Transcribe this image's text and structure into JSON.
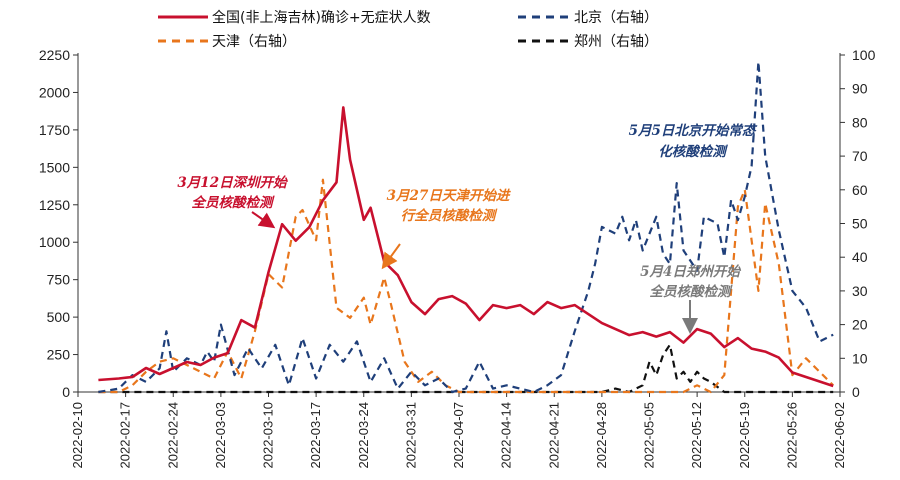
{
  "colors": {
    "national": "#c8102e",
    "beijing": "#1f3f7a",
    "tianjin": "#e8761c",
    "zhengzhou": "#111111",
    "annot_beijing": "#1f3f7a",
    "annot_zhengzhou": "#7a7a7a"
  },
  "chart_data": {
    "type": "line",
    "legend_position": "top",
    "grid": false,
    "x_ticks": [
      "2022-02-10",
      "2022-02-17",
      "2022-02-24",
      "2022-03-03",
      "2022-03-10",
      "2022-03-17",
      "2022-03-24",
      "2022-03-31",
      "2022-04-07",
      "2022-04-14",
      "2022-04-21",
      "2022-04-28",
      "2022-05-05",
      "2022-05-12",
      "2022-05-19",
      "2022-05-26",
      "2022-06-02"
    ],
    "y_left": {
      "range": [
        0,
        2250
      ],
      "ticks": [
        "0",
        "250",
        "500",
        "750",
        "1000",
        "1250",
        "1500",
        "1750",
        "2000",
        "2250"
      ]
    },
    "y_right": {
      "range": [
        0,
        100
      ],
      "ticks": [
        "0",
        "10",
        "20",
        "30",
        "40",
        "50",
        "60",
        "70",
        "80",
        "90",
        "100"
      ]
    },
    "series": [
      {
        "name": "全国(非上海吉林)确诊+无症状人数",
        "axis": "left",
        "style": "solid",
        "points": [
          [
            "2022-02-13",
            80
          ],
          [
            "2022-02-16",
            90
          ],
          [
            "2022-02-18",
            100
          ],
          [
            "2022-02-20",
            160
          ],
          [
            "2022-02-22",
            120
          ],
          [
            "2022-02-24",
            160
          ],
          [
            "2022-02-26",
            200
          ],
          [
            "2022-02-28",
            180
          ],
          [
            "2022-03-02",
            230
          ],
          [
            "2022-03-04",
            260
          ],
          [
            "2022-03-06",
            480
          ],
          [
            "2022-03-08",
            430
          ],
          [
            "2022-03-10",
            800
          ],
          [
            "2022-03-12",
            1120
          ],
          [
            "2022-03-14",
            1010
          ],
          [
            "2022-03-16",
            1100
          ],
          [
            "2022-03-18",
            1280
          ],
          [
            "2022-03-20",
            1400
          ],
          [
            "2022-03-21",
            1900
          ],
          [
            "2022-03-22",
            1550
          ],
          [
            "2022-03-24",
            1150
          ],
          [
            "2022-03-25",
            1230
          ],
          [
            "2022-03-27",
            870
          ],
          [
            "2022-03-29",
            780
          ],
          [
            "2022-03-31",
            600
          ],
          [
            "2022-04-02",
            520
          ],
          [
            "2022-04-04",
            620
          ],
          [
            "2022-04-06",
            640
          ],
          [
            "2022-04-08",
            590
          ],
          [
            "2022-04-10",
            480
          ],
          [
            "2022-04-12",
            580
          ],
          [
            "2022-04-14",
            560
          ],
          [
            "2022-04-16",
            580
          ],
          [
            "2022-04-18",
            520
          ],
          [
            "2022-04-20",
            600
          ],
          [
            "2022-04-22",
            560
          ],
          [
            "2022-04-24",
            580
          ],
          [
            "2022-04-26",
            520
          ],
          [
            "2022-04-28",
            460
          ],
          [
            "2022-04-30",
            420
          ],
          [
            "2022-05-02",
            380
          ],
          [
            "2022-05-04",
            400
          ],
          [
            "2022-05-06",
            370
          ],
          [
            "2022-05-08",
            400
          ],
          [
            "2022-05-10",
            330
          ],
          [
            "2022-05-12",
            420
          ],
          [
            "2022-05-14",
            390
          ],
          [
            "2022-05-16",
            300
          ],
          [
            "2022-05-18",
            360
          ],
          [
            "2022-05-20",
            290
          ],
          [
            "2022-05-22",
            270
          ],
          [
            "2022-05-24",
            230
          ],
          [
            "2022-05-26",
            130
          ],
          [
            "2022-05-28",
            100
          ],
          [
            "2022-05-30",
            70
          ],
          [
            "2022-06-01",
            40
          ]
        ]
      },
      {
        "name": "北京（右轴）",
        "axis": "right",
        "style": "dashed",
        "points": [
          [
            "2022-02-13",
            0
          ],
          [
            "2022-02-16",
            1
          ],
          [
            "2022-02-18",
            5
          ],
          [
            "2022-02-20",
            3
          ],
          [
            "2022-02-22",
            7
          ],
          [
            "2022-02-23",
            18
          ],
          [
            "2022-02-24",
            6
          ],
          [
            "2022-02-26",
            10
          ],
          [
            "2022-02-28",
            8
          ],
          [
            "2022-03-01",
            12
          ],
          [
            "2022-03-02",
            9
          ],
          [
            "2022-03-03",
            20
          ],
          [
            "2022-03-05",
            5
          ],
          [
            "2022-03-07",
            13
          ],
          [
            "2022-03-09",
            7
          ],
          [
            "2022-03-11",
            14
          ],
          [
            "2022-03-13",
            2
          ],
          [
            "2022-03-15",
            16
          ],
          [
            "2022-03-17",
            4
          ],
          [
            "2022-03-19",
            14
          ],
          [
            "2022-03-21",
            9
          ],
          [
            "2022-03-23",
            15
          ],
          [
            "2022-03-25",
            3
          ],
          [
            "2022-03-27",
            10
          ],
          [
            "2022-03-29",
            1
          ],
          [
            "2022-03-31",
            6
          ],
          [
            "2022-04-02",
            2
          ],
          [
            "2022-04-04",
            4
          ],
          [
            "2022-04-06",
            0
          ],
          [
            "2022-04-08",
            1
          ],
          [
            "2022-04-10",
            9
          ],
          [
            "2022-04-12",
            1
          ],
          [
            "2022-04-14",
            2
          ],
          [
            "2022-04-16",
            1
          ],
          [
            "2022-04-18",
            0
          ],
          [
            "2022-04-20",
            2
          ],
          [
            "2022-04-22",
            5
          ],
          [
            "2022-04-24",
            18
          ],
          [
            "2022-04-26",
            30
          ],
          [
            "2022-04-27",
            38
          ],
          [
            "2022-04-28",
            49
          ],
          [
            "2022-04-30",
            47
          ],
          [
            "2022-05-01",
            52
          ],
          [
            "2022-05-02",
            45
          ],
          [
            "2022-05-03",
            51
          ],
          [
            "2022-05-04",
            42
          ],
          [
            "2022-05-06",
            52
          ],
          [
            "2022-05-07",
            41
          ],
          [
            "2022-05-08",
            38
          ],
          [
            "2022-05-09",
            62
          ],
          [
            "2022-05-10",
            42
          ],
          [
            "2022-05-12",
            36
          ],
          [
            "2022-05-13",
            52
          ],
          [
            "2022-05-15",
            50
          ],
          [
            "2022-05-16",
            40
          ],
          [
            "2022-05-17",
            57
          ],
          [
            "2022-05-18",
            51
          ],
          [
            "2022-05-19",
            58
          ],
          [
            "2022-05-20",
            67
          ],
          [
            "2022-05-21",
            98
          ],
          [
            "2022-05-22",
            70
          ],
          [
            "2022-05-24",
            48
          ],
          [
            "2022-05-26",
            30
          ],
          [
            "2022-05-28",
            25
          ],
          [
            "2022-05-30",
            15
          ],
          [
            "2022-06-01",
            17
          ]
        ]
      },
      {
        "name": "天津（右轴）",
        "axis": "right",
        "style": "dashed",
        "points": [
          [
            "2022-02-13",
            0
          ],
          [
            "2022-02-16",
            0
          ],
          [
            "2022-02-18",
            2
          ],
          [
            "2022-02-20",
            6
          ],
          [
            "2022-02-22",
            9
          ],
          [
            "2022-02-24",
            10
          ],
          [
            "2022-02-26",
            8
          ],
          [
            "2022-02-28",
            6
          ],
          [
            "2022-03-02",
            4
          ],
          [
            "2022-03-04",
            12
          ],
          [
            "2022-03-06",
            4
          ],
          [
            "2022-03-08",
            18
          ],
          [
            "2022-03-10",
            35
          ],
          [
            "2022-03-12",
            31
          ],
          [
            "2022-03-14",
            52
          ],
          [
            "2022-03-15",
            54
          ],
          [
            "2022-03-17",
            45
          ],
          [
            "2022-03-18",
            63
          ],
          [
            "2022-03-20",
            25
          ],
          [
            "2022-03-22",
            22
          ],
          [
            "2022-03-24",
            28
          ],
          [
            "2022-03-25",
            20
          ],
          [
            "2022-03-27",
            34
          ],
          [
            "2022-03-28",
            26
          ],
          [
            "2022-03-30",
            9
          ],
          [
            "2022-04-01",
            3
          ],
          [
            "2022-04-03",
            6
          ],
          [
            "2022-04-05",
            2
          ],
          [
            "2022-04-07",
            0
          ],
          [
            "2022-05-10",
            0
          ],
          [
            "2022-05-12",
            2
          ],
          [
            "2022-05-14",
            0
          ],
          [
            "2022-05-16",
            5
          ],
          [
            "2022-05-18",
            55
          ],
          [
            "2022-05-19",
            60
          ],
          [
            "2022-05-20",
            45
          ],
          [
            "2022-05-21",
            30
          ],
          [
            "2022-05-22",
            56
          ],
          [
            "2022-05-24",
            38
          ],
          [
            "2022-05-26",
            5
          ],
          [
            "2022-05-28",
            10
          ],
          [
            "2022-05-30",
            6
          ],
          [
            "2022-06-01",
            2
          ]
        ]
      },
      {
        "name": "郑州（右轴）",
        "axis": "right",
        "style": "dashed",
        "points": [
          [
            "2022-02-13",
            0
          ],
          [
            "2022-04-28",
            0
          ],
          [
            "2022-04-30",
            1
          ],
          [
            "2022-05-02",
            0
          ],
          [
            "2022-05-04",
            2
          ],
          [
            "2022-05-05",
            9
          ],
          [
            "2022-05-06",
            5
          ],
          [
            "2022-05-07",
            11
          ],
          [
            "2022-05-08",
            14
          ],
          [
            "2022-05-09",
            4
          ],
          [
            "2022-05-10",
            6
          ],
          [
            "2022-05-11",
            3
          ],
          [
            "2022-05-12",
            6
          ],
          [
            "2022-05-13",
            4
          ],
          [
            "2022-05-14",
            3
          ],
          [
            "2022-05-16",
            0
          ],
          [
            "2022-06-01",
            0
          ]
        ]
      }
    ],
    "annotations": [
      {
        "line1": "3月12日深圳开始",
        "line2": "全员核酸检测",
        "color_key": "national"
      },
      {
        "line1": "3月27日天津开始进",
        "line2": "行全员核酸检测",
        "color_key": "tianjin"
      },
      {
        "line1": "5月5日北京开始常态",
        "line2": "化核酸检测",
        "color_key": "annot_beijing"
      },
      {
        "line1": "5月4日郑州开始",
        "line2": "全员核酸检测",
        "color_key": "annot_zhengzhou"
      }
    ]
  }
}
